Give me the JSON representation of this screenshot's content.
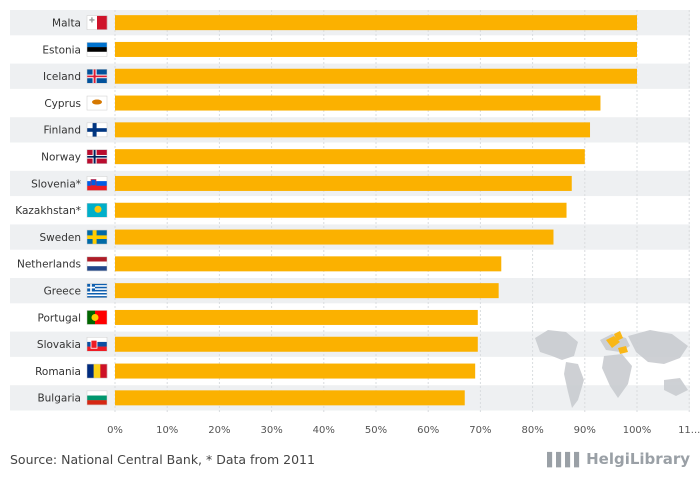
{
  "chart_data": {
    "type": "bar",
    "orientation": "horizontal",
    "categories": [
      "Malta",
      "Estonia",
      "Iceland",
      "Cyprus",
      "Finland",
      "Norway",
      "Slovenia*",
      "Kazakhstan*",
      "Sweden",
      "Netherlands",
      "Greece",
      "Portugal",
      "Slovakia",
      "Romania",
      "Bulgaria"
    ],
    "values": [
      100,
      100,
      100,
      93,
      91,
      90,
      87.5,
      86.5,
      84,
      74,
      73.5,
      69.5,
      69.5,
      69,
      67
    ],
    "ticks": [
      "0%",
      "10%",
      "20%",
      "30%",
      "40%",
      "50%",
      "60%",
      "70%",
      "80%",
      "90%",
      "100%",
      "11..."
    ],
    "xlim": [
      0,
      110
    ],
    "bar_color": "#fbb100",
    "grid": true
  },
  "flags": {
    "Malta": "flag-malta-icon",
    "Estonia": "flag-estonia-icon",
    "Iceland": "flag-iceland-icon",
    "Cyprus": "flag-cyprus-icon",
    "Finland": "flag-finland-icon",
    "Norway": "flag-norway-icon",
    "Slovenia*": "flag-slovenia-icon",
    "Kazakhstan*": "flag-kazakhstan-icon",
    "Sweden": "flag-sweden-icon",
    "Netherlands": "flag-netherlands-icon",
    "Greece": "flag-greece-icon",
    "Portugal": "flag-portugal-icon",
    "Slovakia": "flag-slovakia-icon",
    "Romania": "flag-romania-icon",
    "Bulgaria": "flag-bulgaria-icon"
  },
  "footer": {
    "source": "Source: National Central Bank, * Data from 2011",
    "brand": "HelgiLibrary"
  }
}
